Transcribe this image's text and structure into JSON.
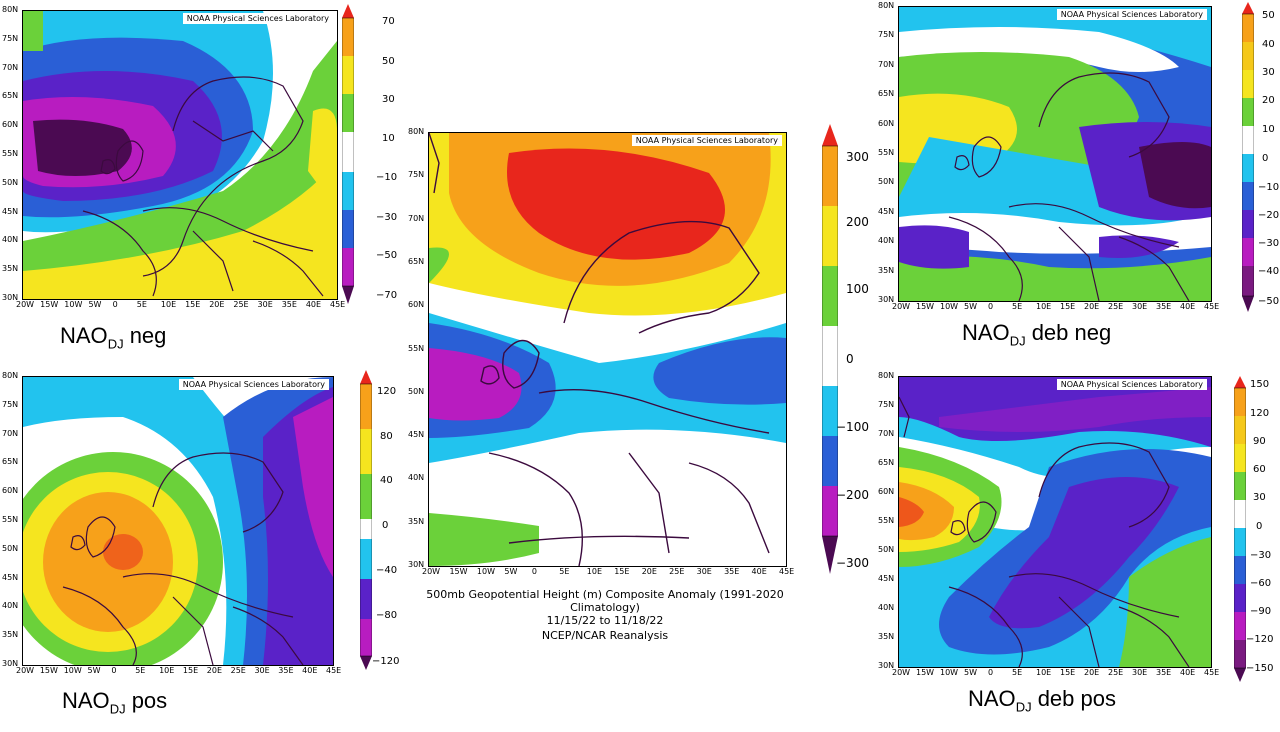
{
  "credit": "NOAA Physical Sciences Laboratory",
  "lat_labels_small": [
    "80N",
    "75N",
    "70N",
    "65N",
    "60N",
    "55N",
    "50N",
    "45N",
    "40N",
    "35N",
    "30N"
  ],
  "lon_labels": [
    "20W",
    "15W",
    "10W",
    "5W",
    "0",
    "5E",
    "10E",
    "15E",
    "20E",
    "25E",
    "30E",
    "35E",
    "40E",
    "45E"
  ],
  "panels": {
    "top_left": {
      "caption_main": "NAO",
      "caption_sub": "DJ",
      "caption_rest": " neg",
      "colorbar": [
        "70",
        "50",
        "30",
        "10",
        "−10",
        "−30",
        "−50",
        "−70"
      ]
    },
    "bottom_left": {
      "caption_main": "NAO",
      "caption_sub": "DJ",
      "caption_rest": " pos",
      "colorbar": [
        "120",
        "80",
        "40",
        "0",
        "−40",
        "−80",
        "−120"
      ]
    },
    "top_right": {
      "caption_main": "NAO",
      "caption_sub": "DJ",
      "caption_rest": " deb neg",
      "colorbar": [
        "50",
        "40",
        "30",
        "20",
        "10",
        "0",
        "−10",
        "−20",
        "−30",
        "−40",
        "−50"
      ]
    },
    "bottom_right": {
      "caption_main": "NAO",
      "caption_sub": "DJ",
      "caption_rest": " deb pos",
      "colorbar": [
        "150",
        "120",
        "90",
        "60",
        "30",
        "0",
        "−30",
        "−60",
        "−90",
        "−120",
        "−150"
      ]
    },
    "center": {
      "colorbar": [
        "300",
        "200",
        "100",
        "0",
        "−100",
        "−200",
        "−300"
      ],
      "title_line1": "500mb Geopotential Height (m) Composite Anomaly (1991-2020 Climatology)",
      "title_line2": "11/15/22  to 11/18/22",
      "title_line3": "NCEP/NCAR Reanalysis"
    }
  },
  "colors": {
    "red": "#e8261c",
    "orange": "#f7a11a",
    "yellow": "#f5e51f",
    "green": "#6bd13a",
    "white": "#ffffff",
    "cyan": "#22c3ee",
    "blue": "#2a5fd6",
    "indigo": "#5a22c8",
    "magenta": "#b81cc0",
    "purple": "#4b0a52",
    "coast": "#3b0a3e"
  }
}
